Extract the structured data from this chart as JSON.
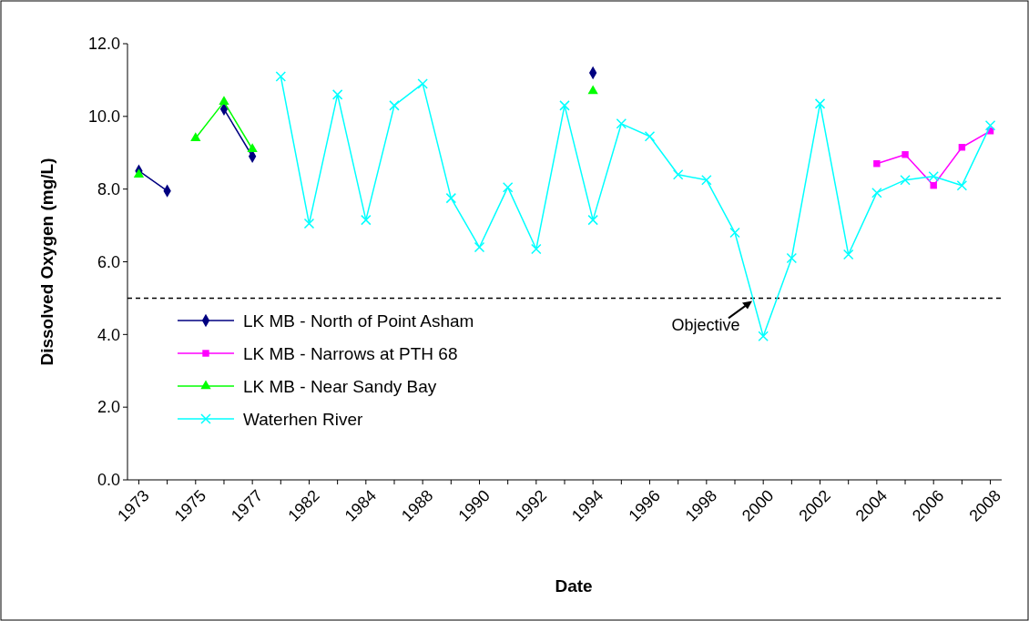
{
  "chart_data": {
    "type": "line",
    "xlabel": "Date",
    "ylabel": "Dissolved Oxygen (mg/L)",
    "categories": [
      "1973",
      null,
      "1975",
      null,
      "1977",
      null,
      "1982",
      null,
      "1984",
      null,
      "1988",
      null,
      "1990",
      null,
      "1992",
      null,
      "1994",
      null,
      "1996",
      null,
      "1998",
      null,
      "2000",
      null,
      "2002",
      null,
      "2004",
      null,
      "2006",
      null,
      "2008"
    ],
    "ylim": [
      0,
      12
    ],
    "yticks": [
      {
        "value": 0,
        "label": "0.0"
      },
      {
        "value": 2,
        "label": "2.0"
      },
      {
        "value": 4,
        "label": "4.0"
      },
      {
        "value": 6,
        "label": "6.0"
      },
      {
        "value": 8,
        "label": "8.0"
      },
      {
        "value": 10,
        "label": "10.0"
      },
      {
        "value": 12,
        "label": "12.0"
      }
    ],
    "series": [
      {
        "name": "LK MB - North of Point Asham",
        "color": "#000080",
        "marker": "diamond",
        "values": [
          8.5,
          7.95,
          null,
          10.2,
          8.9,
          null,
          null,
          null,
          null,
          null,
          null,
          null,
          null,
          null,
          null,
          null,
          11.2,
          null,
          null,
          null,
          null,
          null,
          null,
          null,
          null,
          null,
          null,
          null,
          null,
          null,
          null
        ]
      },
      {
        "name": "LK MB - Narrows at PTH 68",
        "color": "#ff00ff",
        "marker": "square",
        "values": [
          null,
          null,
          null,
          null,
          null,
          null,
          null,
          null,
          null,
          null,
          null,
          null,
          null,
          null,
          null,
          null,
          null,
          null,
          null,
          null,
          null,
          null,
          null,
          null,
          null,
          null,
          8.7,
          8.95,
          8.1,
          9.15,
          9.6
        ]
      },
      {
        "name": "LK MB - Near Sandy Bay",
        "color": "#00ff00",
        "marker": "triangle",
        "values": [
          8.4,
          null,
          9.4,
          10.4,
          9.1,
          null,
          null,
          null,
          null,
          null,
          null,
          null,
          null,
          null,
          null,
          null,
          10.7,
          null,
          null,
          null,
          null,
          null,
          null,
          null,
          null,
          null,
          null,
          null,
          null,
          null,
          null
        ]
      },
      {
        "name": "Waterhen River",
        "color": "#00ffff",
        "marker": "cross",
        "values": [
          null,
          null,
          null,
          null,
          null,
          11.1,
          7.05,
          10.6,
          7.15,
          10.3,
          10.9,
          7.75,
          6.4,
          8.05,
          6.35,
          10.3,
          7.15,
          9.8,
          9.45,
          8.4,
          8.25,
          6.8,
          3.95,
          6.1,
          10.35,
          6.2,
          7.9,
          8.25,
          8.35,
          8.1,
          9.75
        ]
      }
    ],
    "ref_lines": [
      {
        "axis": "y",
        "value": 5,
        "label": "Objective",
        "color": "#000000",
        "line_style": "dashed"
      }
    ],
    "legend": "bottom left",
    "grid": false
  }
}
